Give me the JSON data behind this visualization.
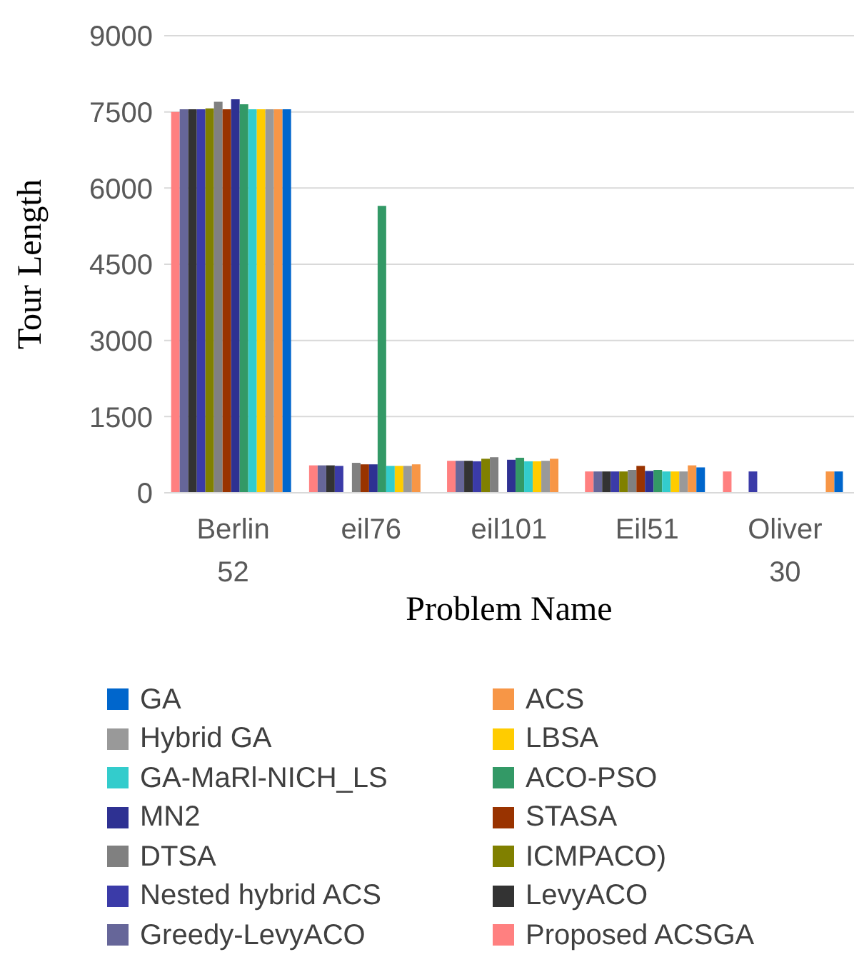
{
  "chart_data": {
    "type": "bar",
    "xlabel": "Problem Name",
    "ylabel": "Tour Length",
    "categories": [
      "Berlin 52",
      "eil76",
      "eil101",
      "Eil51",
      "Oliver 30"
    ],
    "ylim": [
      0,
      9000
    ],
    "yticks": [
      0,
      1500,
      3000,
      4500,
      6000,
      7500,
      9000
    ],
    "grid": "y",
    "legend": "bottom",
    "series": [
      {
        "name": "GA",
        "color": "#0066cc",
        "values": [
          7550,
          null,
          null,
          500,
          420
        ]
      },
      {
        "name": "ACS",
        "color": "#f79646",
        "values": [
          7550,
          560,
          670,
          540,
          420
        ]
      },
      {
        "name": "Hybrid GA",
        "color": "#999999",
        "values": [
          7550,
          530,
          630,
          420,
          null
        ]
      },
      {
        "name": "LBSA",
        "color": "#ffcc00",
        "values": [
          7550,
          530,
          620,
          420,
          null
        ]
      },
      {
        "name": "GA-MaRl-NICH_LS",
        "color": "#33cccc",
        "values": [
          7550,
          530,
          620,
          420,
          null
        ]
      },
      {
        "name": "ACO-PSO",
        "color": "#339966",
        "values": [
          7650,
          5650,
          690,
          450,
          null
        ]
      },
      {
        "name": "MN2",
        "color": "#2e3192",
        "values": [
          7750,
          560,
          650,
          430,
          null
        ]
      },
      {
        "name": "STASA",
        "color": "#993300",
        "values": [
          7550,
          560,
          null,
          530,
          null
        ]
      },
      {
        "name": "DTSA",
        "color": "#808080",
        "values": [
          7700,
          590,
          700,
          450,
          null
        ]
      },
      {
        "name": "ICMPACO)",
        "color": "#808000",
        "values": [
          7570,
          null,
          670,
          420,
          null
        ]
      },
      {
        "name": "Nested hybrid ACS",
        "color": "#3b3ba8",
        "values": [
          7550,
          530,
          620,
          420,
          420
        ]
      },
      {
        "name": "LevyACO",
        "color": "#333333",
        "values": [
          7550,
          540,
          630,
          420,
          null
        ]
      },
      {
        "name": "Greedy-LevyACO",
        "color": "#666699",
        "values": [
          7550,
          540,
          630,
          420,
          null
        ]
      },
      {
        "name": "Proposed ACSGA",
        "color": "#ff8080",
        "values": [
          7500,
          540,
          630,
          420,
          420
        ]
      }
    ]
  }
}
